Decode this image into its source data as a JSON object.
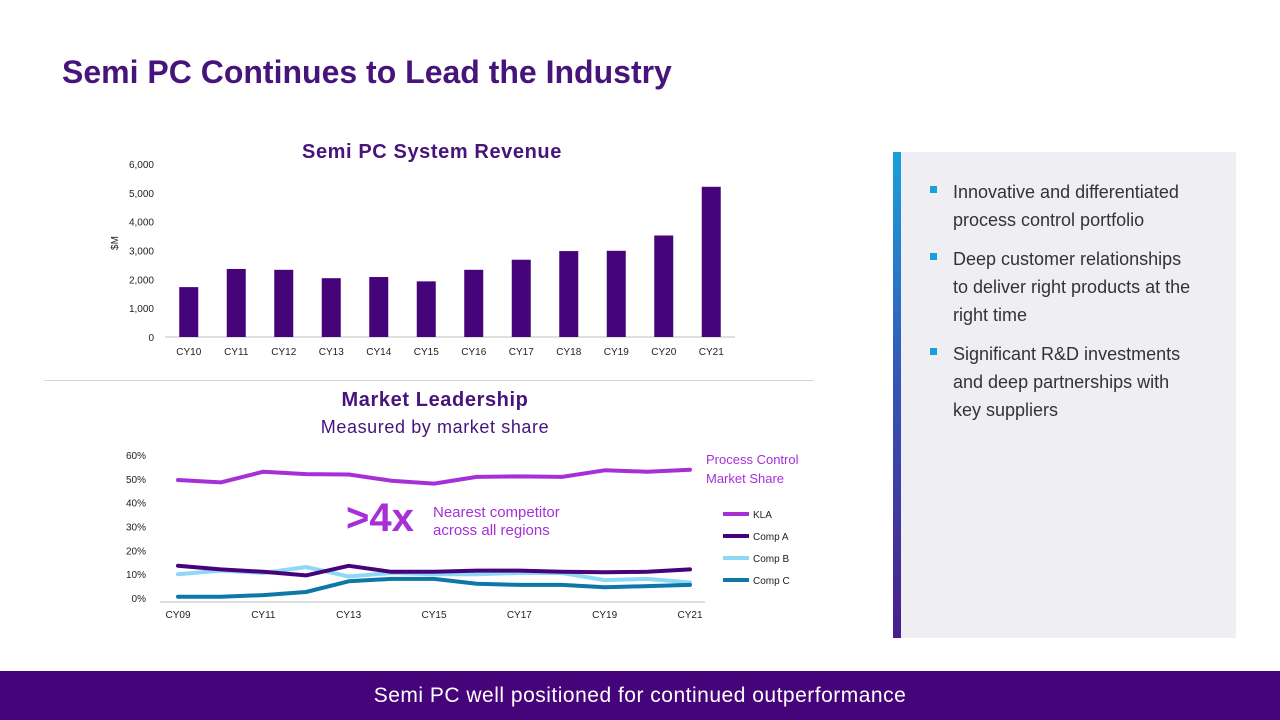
{
  "title": "Semi PC Continues to Lead the Industry",
  "chart_data": [
    {
      "type": "bar",
      "title": "Semi PC System Revenue",
      "ylabel": "$M",
      "xlabel": "",
      "ylim": [
        0,
        6000
      ],
      "yticks": [
        "0",
        "1,000",
        "2,000",
        "3,000",
        "4,000",
        "5,000",
        "6,000"
      ],
      "categories": [
        "CY10",
        "CY11",
        "CY12",
        "CY13",
        "CY14",
        "CY15",
        "CY16",
        "CY17",
        "CY18",
        "CY19",
        "CY20",
        "CY21"
      ],
      "values": [
        1730,
        2360,
        2330,
        2040,
        2080,
        1930,
        2330,
        2680,
        2980,
        2990,
        3520,
        5210
      ],
      "color": "#46047a"
    },
    {
      "type": "line",
      "title": "Market Leadership",
      "subtitle": "Measured  by market share",
      "legend_title": "Process Control Market Share",
      "ylim": [
        0,
        60
      ],
      "yticks": [
        "0%",
        "10%",
        "20%",
        "30%",
        "40%",
        "50%",
        "60%"
      ],
      "x": [
        "CY09",
        "CY10",
        "CY11",
        "CY12",
        "CY13",
        "CY14",
        "CY15",
        "CY16",
        "CY17",
        "CY18",
        "CY19",
        "CY20",
        "CY21"
      ],
      "xticks": [
        "CY09",
        "CY11",
        "CY13",
        "CY15",
        "CY17",
        "CY19",
        "CY21"
      ],
      "series": [
        {
          "name": "KLA",
          "color": "#a62fd6",
          "values": [
            49.5,
            48.5,
            53,
            52,
            51.8,
            49.2,
            48,
            50.8,
            51,
            50.8,
            53.6,
            53,
            53.8
          ]
        },
        {
          "name": "Comp A",
          "color": "#46047a",
          "values": [
            13.5,
            12,
            11,
            9.5,
            13.5,
            11,
            11,
            11.5,
            11.5,
            11,
            10.8,
            11,
            12
          ]
        },
        {
          "name": "Comp B",
          "color": "#8fd8f5",
          "values": [
            10,
            11.5,
            10.5,
            13,
            9,
            10.5,
            10,
            10,
            10.5,
            10.5,
            7.5,
            8,
            6.5
          ]
        },
        {
          "name": "Comp C",
          "color": "#0d77a8",
          "values": [
            0.5,
            0.5,
            1.2,
            2.5,
            7,
            8,
            8,
            6,
            5.5,
            5.5,
            4.5,
            5,
            5.5
          ]
        }
      ],
      "annotation": {
        "big": ">4x",
        "line1": "Nearest competitor",
        "line2": "across all regions",
        "color": "#a62fd6"
      }
    }
  ],
  "panel": {
    "bullets": [
      "Innovative and differentiated process control portfolio",
      "Deep customer relationships to deliver right products at the right time",
      "Significant R&D investments and deep partnerships with key suppliers"
    ]
  },
  "footer": {
    "text": "Semi PC well positioned for continued outperformance"
  }
}
